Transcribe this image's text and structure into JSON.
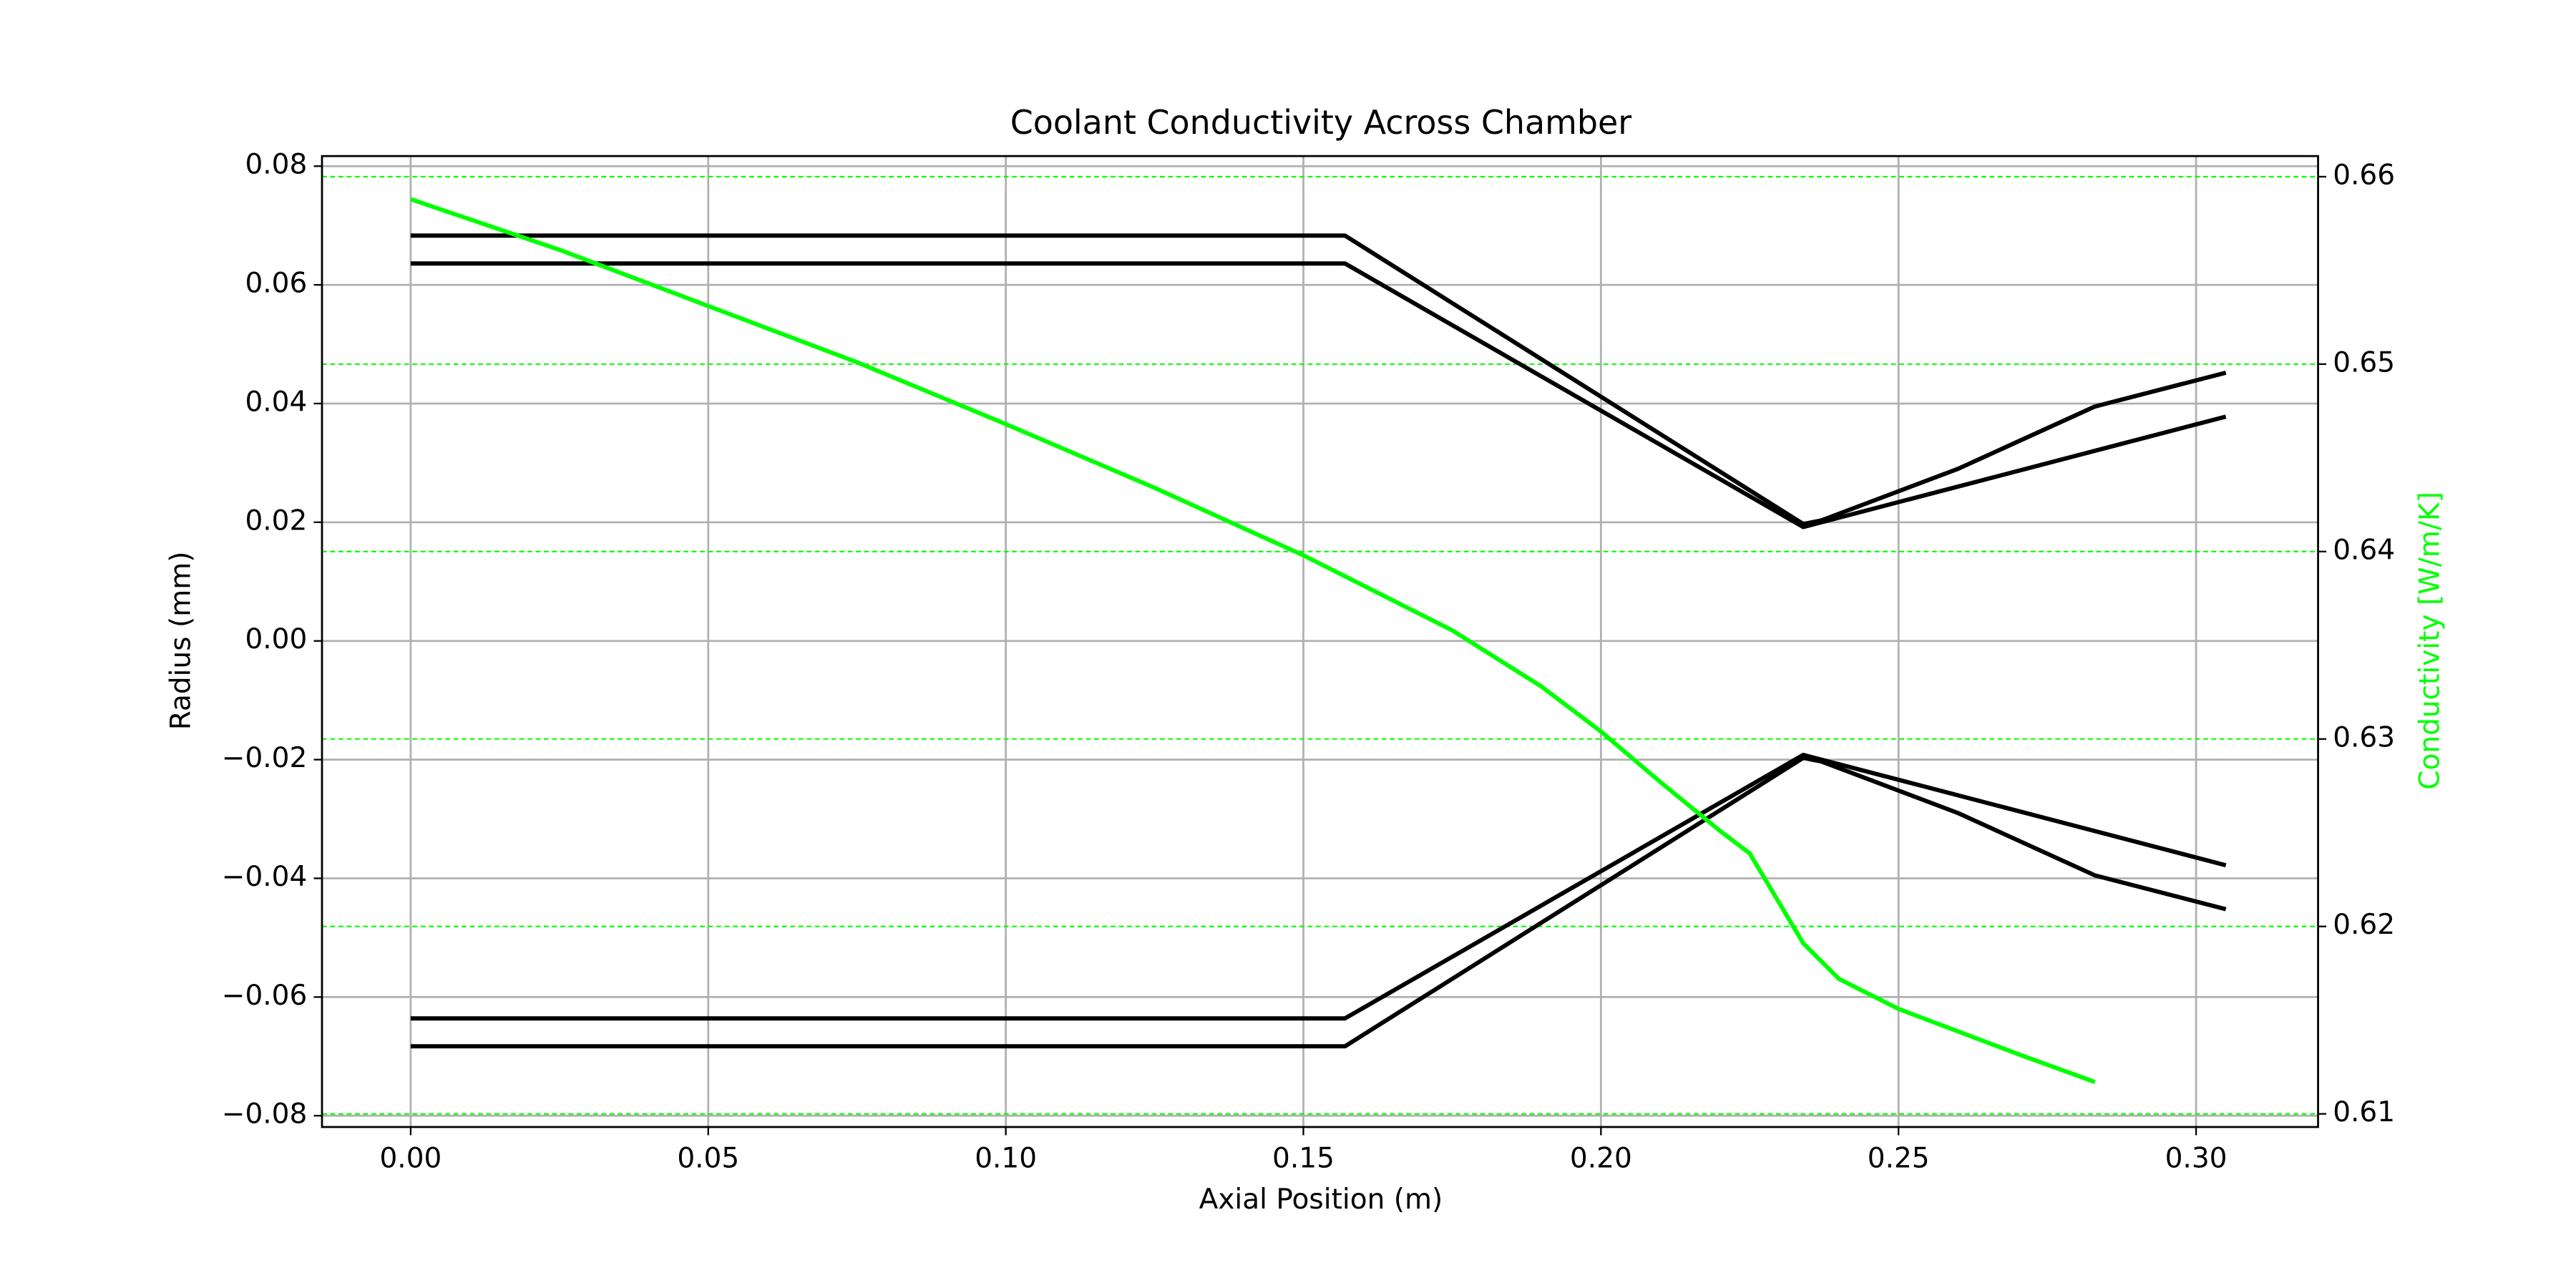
{
  "chart_data": {
    "type": "line",
    "title": "Coolant Conductivity Across Chamber",
    "xlabel": "Axial Position (m)",
    "ylabel": "Radius (mm)",
    "y2label": "Conductivity [W/m/K]",
    "xlim": [
      -0.0149,
      0.3205
    ],
    "ylim": [
      -0.0819,
      0.0817
    ],
    "y2lim": [
      0.6093,
      0.6611
    ],
    "xticks": [
      {
        "value": 0,
        "label": "0.00"
      },
      {
        "value": 0.05,
        "label": "0.05"
      },
      {
        "value": 0.1,
        "label": "0.10"
      },
      {
        "value": 0.15,
        "label": "0.15"
      },
      {
        "value": 0.2,
        "label": "0.20"
      },
      {
        "value": 0.25,
        "label": "0.25"
      },
      {
        "value": 0.3,
        "label": "0.30"
      }
    ],
    "yticks": [
      {
        "value": -0.08,
        "label": "−0.08"
      },
      {
        "value": -0.06,
        "label": "−0.06"
      },
      {
        "value": -0.04,
        "label": "−0.04"
      },
      {
        "value": -0.02,
        "label": "−0.02"
      },
      {
        "value": 0,
        "label": "0.00"
      },
      {
        "value": 0.02,
        "label": "0.02"
      },
      {
        "value": 0.04,
        "label": "0.04"
      },
      {
        "value": 0.06,
        "label": "0.06"
      },
      {
        "value": 0.08,
        "label": "0.08"
      }
    ],
    "y2ticks": [
      0.61,
      0.62,
      0.63,
      0.64,
      0.65,
      0.66
    ],
    "grid": true,
    "grid_color": "#b0b0b0",
    "y2grid": true,
    "y2grid_color": "#00ff00",
    "y2label_color": "#00ff00",
    "series": [
      {
        "color": "#000000",
        "x": [
          0,
          0.157,
          0.234,
          0.237,
          0.26,
          0.283,
          0.305
        ],
        "values": [
          0.0683,
          0.0683,
          0.0197,
          0.0203,
          0.029,
          0.0395,
          0.0452
        ]
      },
      {
        "color": "#000000",
        "x": [
          0,
          0.157,
          0.234,
          0.305
        ],
        "values": [
          0.0636,
          0.0636,
          0.0192,
          0.0378
        ]
      },
      {
        "color": "#000000",
        "x": [
          0,
          0.157,
          0.234,
          0.237,
          0.26,
          0.283,
          0.305
        ],
        "values": [
          -0.0683,
          -0.0683,
          -0.0197,
          -0.0203,
          -0.029,
          -0.0395,
          -0.0452
        ]
      },
      {
        "color": "#000000",
        "x": [
          0,
          0.157,
          0.234,
          0.305
        ],
        "values": [
          -0.0636,
          -0.0636,
          -0.0192,
          -0.0378
        ]
      },
      {
        "color": "#00ff00",
        "axis": "y2",
        "x": [
          0,
          0.025,
          0.05,
          0.075,
          0.1,
          0.125,
          0.15,
          0.175,
          0.19,
          0.2,
          0.21,
          0.22,
          0.225,
          0.234,
          0.24,
          0.25,
          0.27,
          0.283
        ],
        "values": [
          0.6588,
          0.6561,
          0.6531,
          0.6501,
          0.6468,
          0.6434,
          0.6398,
          0.6358,
          0.6328,
          0.6304,
          0.6277,
          0.6251,
          0.6239,
          0.6191,
          0.6172,
          0.6156,
          0.6132,
          0.6117
        ]
      }
    ]
  }
}
